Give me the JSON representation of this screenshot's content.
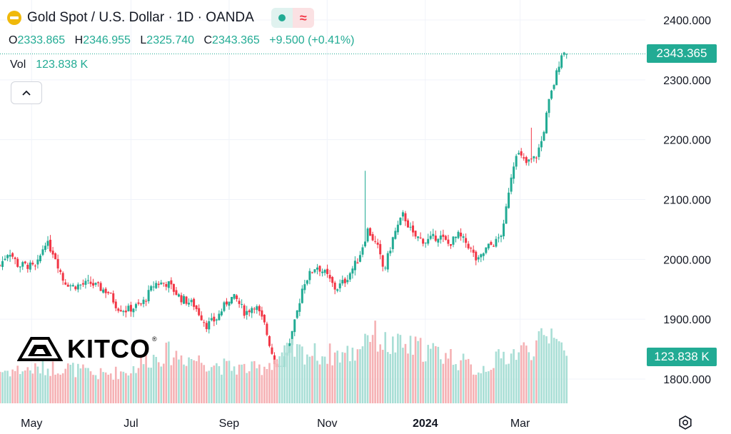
{
  "header": {
    "title": "Gold Spot / U.S. Dollar · 1D · OANDA",
    "open_label": "O",
    "open": "2333.865",
    "high_label": "H",
    "high": "2346.955",
    "low_label": "L",
    "low": "2325.740",
    "close_label": "C",
    "close": "2343.365",
    "change": "+9.500 (+0.41%)",
    "vol_label": "Vol",
    "vol_value": "123.838 K",
    "collapse_icon": "chevron-up-icon"
  },
  "logo": {
    "text": "KITCO",
    "reg": "®"
  },
  "price_tag": "2343.365",
  "volume_tag": "123.838 K",
  "colors": {
    "up": "#22ab94",
    "down": "#f23645",
    "up_vol": "#a8ded5",
    "down_vol": "#f5b1b4",
    "coin": "#f0b90b"
  },
  "chart_data": {
    "type": "candlestick",
    "title": "Gold Spot / U.S. Dollar · 1D · OANDA",
    "y_ticks": [
      "2400.000",
      "2300.000",
      "2200.000",
      "2100.000",
      "2000.000",
      "1900.000",
      "1800.000"
    ],
    "ylim": [
      1788,
      2425
    ],
    "x_ticks": [
      {
        "label": "May",
        "bold": false,
        "x": 0.049
      },
      {
        "label": "Jul",
        "bold": false,
        "x": 0.203
      },
      {
        "label": "Sep",
        "bold": false,
        "x": 0.355
      },
      {
        "label": "Nov",
        "bold": false,
        "x": 0.507
      },
      {
        "label": "2024",
        "bold": true,
        "x": 0.659
      },
      {
        "label": "Mar",
        "bold": false,
        "x": 0.806
      }
    ],
    "last_price": 2343.365,
    "grid": true,
    "close_path": [
      [
        0.0,
        1990
      ],
      [
        0.014,
        2015
      ],
      [
        0.028,
        1990
      ],
      [
        0.042,
        1990
      ],
      [
        0.056,
        1985
      ],
      [
        0.07,
        2030
      ],
      [
        0.084,
        2010
      ],
      [
        0.098,
        1965
      ],
      [
        0.112,
        1955
      ],
      [
        0.14,
        1960
      ],
      [
        0.168,
        1945
      ],
      [
        0.182,
        1920
      ],
      [
        0.196,
        1915
      ],
      [
        0.22,
        1925
      ],
      [
        0.24,
        1960
      ],
      [
        0.26,
        1960
      ],
      [
        0.28,
        1935
      ],
      [
        0.3,
        1925
      ],
      [
        0.32,
        1890
      ],
      [
        0.335,
        1900
      ],
      [
        0.355,
        1935
      ],
      [
        0.365,
        1935
      ],
      [
        0.38,
        1910
      ],
      [
        0.395,
        1925
      ],
      [
        0.41,
        1890
      ],
      [
        0.425,
        1830
      ],
      [
        0.435,
        1820
      ],
      [
        0.45,
        1860
      ],
      [
        0.47,
        1960
      ],
      [
        0.49,
        1990
      ],
      [
        0.505,
        1975
      ],
      [
        0.52,
        1950
      ],
      [
        0.535,
        1965
      ],
      [
        0.555,
        2000
      ],
      [
        0.57,
        2050
      ],
      [
        0.585,
        2020
      ],
      [
        0.595,
        1980
      ],
      [
        0.61,
        2040
      ],
      [
        0.625,
        2075
      ],
      [
        0.64,
        2040
      ],
      [
        0.66,
        2030
      ],
      [
        0.68,
        2040
      ],
      [
        0.695,
        2025
      ],
      [
        0.71,
        2040
      ],
      [
        0.725,
        2025
      ],
      [
        0.74,
        1995
      ],
      [
        0.755,
        2020
      ],
      [
        0.77,
        2030
      ],
      [
        0.78,
        2050
      ],
      [
        0.79,
        2130
      ],
      [
        0.8,
        2180
      ],
      [
        0.815,
        2160
      ],
      [
        0.83,
        2170
      ],
      [
        0.84,
        2200
      ],
      [
        0.85,
        2260
      ],
      [
        0.86,
        2300
      ],
      [
        0.87,
        2345
      ],
      [
        0.878,
        2343.365
      ]
    ],
    "spikes": [
      {
        "x": 0.565,
        "high": 2148
      },
      {
        "x": 0.823,
        "high": 2220
      }
    ],
    "volume_profile": [
      [
        0.0,
        0.4
      ],
      [
        0.05,
        0.42
      ],
      [
        0.1,
        0.45
      ],
      [
        0.15,
        0.35
      ],
      [
        0.2,
        0.4
      ],
      [
        0.23,
        0.55
      ],
      [
        0.26,
        0.62
      ],
      [
        0.3,
        0.55
      ],
      [
        0.35,
        0.45
      ],
      [
        0.4,
        0.42
      ],
      [
        0.45,
        0.65
      ],
      [
        0.5,
        0.6
      ],
      [
        0.55,
        0.62
      ],
      [
        0.57,
        0.9
      ],
      [
        0.6,
        0.72
      ],
      [
        0.65,
        0.68
      ],
      [
        0.7,
        0.58
      ],
      [
        0.74,
        0.4
      ],
      [
        0.78,
        0.58
      ],
      [
        0.82,
        0.68
      ],
      [
        0.85,
        0.8
      ],
      [
        0.86,
        1.0
      ],
      [
        0.878,
        0.48
      ]
    ]
  }
}
